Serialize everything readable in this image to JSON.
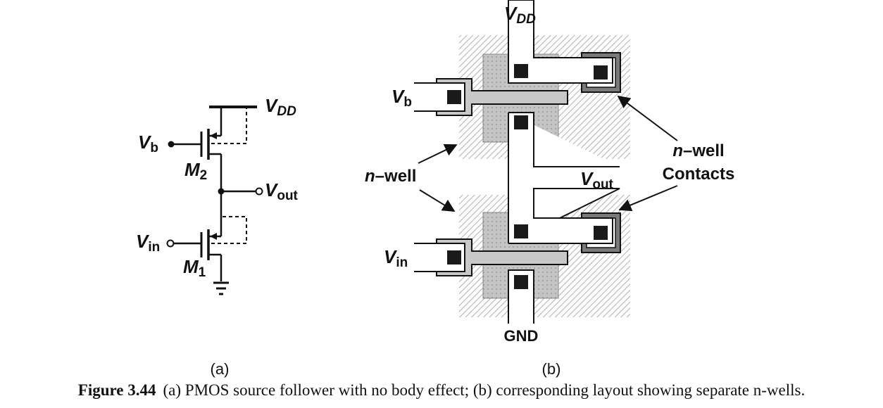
{
  "circuit": {
    "vdd": "V",
    "vdd_sub": "DD",
    "vb": "V",
    "vb_sub": "b",
    "m2": "M",
    "m2_sub": "2",
    "vout": "V",
    "vout_sub": "out",
    "vin": "V",
    "vin_sub": "in",
    "m1": "M",
    "m1_sub": "1"
  },
  "layout": {
    "vdd": "V",
    "vdd_sub": "DD",
    "vb": "V",
    "vb_sub": "b",
    "vout": "V",
    "vout_sub": "out",
    "vin": "V",
    "vin_sub": "in",
    "gnd": "GND",
    "nwell_italic": "n",
    "nwell_rest": "–well",
    "contacts_line1_italic": "n",
    "contacts_line1_rest": "–well",
    "contacts_line2": "Contacts"
  },
  "panels": {
    "a": "(a)",
    "b": "(b)"
  },
  "caption": {
    "number": "Figure 3.44",
    "text": "(a) PMOS source follower with no body effect; (b) corresponding layout showing separate n-wells."
  },
  "colors": {
    "well_hatch": "#9a9a9a",
    "diffusion": "#bdbdbd",
    "poly": "#c8c8c8",
    "contact": "#1a1a1a",
    "well_contact_ring": "#777777"
  }
}
